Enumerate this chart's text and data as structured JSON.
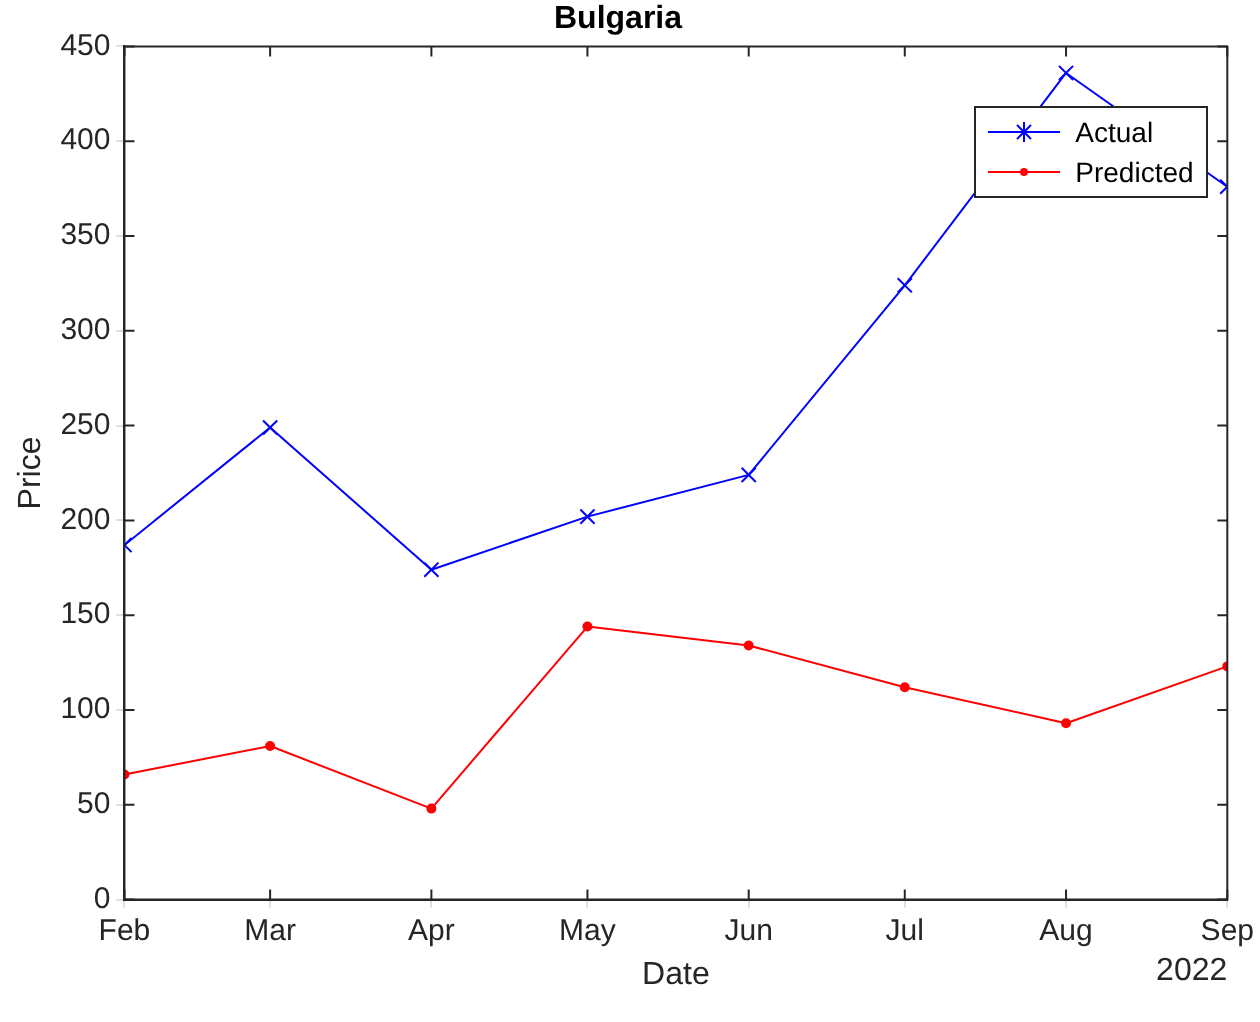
{
  "chart_data": {
    "type": "line",
    "title": "Bulgaria",
    "xlabel": "Date",
    "ylabel": "Price",
    "x": [
      "2022-02-01",
      "2022-03-01",
      "2022-04-01",
      "2022-05-01",
      "2022-06-01",
      "2022-07-01",
      "2022-08-01",
      "2022-09-01"
    ],
    "series": [
      {
        "name": "Actual",
        "color": "#0000ff",
        "marker": "cross",
        "values": [
          187,
          249,
          174,
          202,
          224,
          324,
          436,
          376
        ]
      },
      {
        "name": "Predicted",
        "color": "#ff0000",
        "marker": "circle",
        "values": [
          66,
          81,
          48,
          144,
          134,
          112,
          93,
          123
        ]
      }
    ],
    "xlim": [
      "2022-02-01",
      "2022-09-01"
    ],
    "xticks": [
      {
        "value": "2022-02-01",
        "label": "Feb"
      },
      {
        "value": "2022-03-01",
        "label": "Mar"
      },
      {
        "value": "2022-04-01",
        "label": "Apr"
      },
      {
        "value": "2022-05-01",
        "label": "May"
      },
      {
        "value": "2022-06-01",
        "label": "Jun"
      },
      {
        "value": "2022-07-01",
        "label": "Jul"
      },
      {
        "value": "2022-08-01",
        "label": "Aug"
      },
      {
        "value": "2022-09-01",
        "label": "Sep"
      }
    ],
    "ylim": [
      0,
      450
    ],
    "yticks": [
      0,
      50,
      100,
      150,
      200,
      250,
      300,
      350,
      400,
      450
    ],
    "annotations": [
      "2022"
    ],
    "grid": false,
    "legend": "top right",
    "line_style": "solid"
  }
}
